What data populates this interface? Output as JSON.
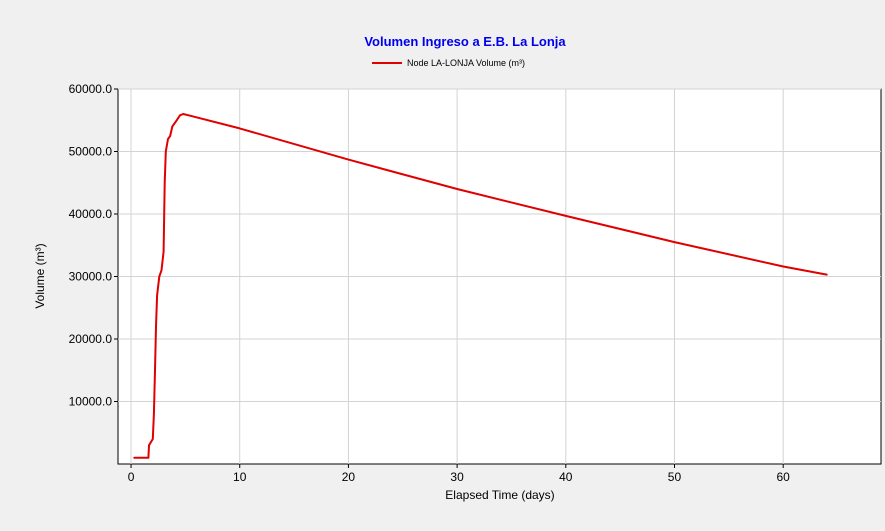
{
  "chart_data": {
    "type": "line",
    "title": "Volumen Ingreso a E.B. La Lonja",
    "xlabel": "Elapsed Time (days)",
    "ylabel": "Volume (m³)",
    "xlim": [
      -1.2,
      69
    ],
    "ylim": [
      0,
      60000
    ],
    "x_ticks": [
      0,
      10,
      20,
      30,
      40,
      50,
      60
    ],
    "y_ticks": [
      10000,
      20000,
      30000,
      40000,
      50000,
      60000
    ],
    "x_tick_labels": [
      "0",
      "10",
      "20",
      "30",
      "40",
      "50",
      "60"
    ],
    "y_tick_labels": [
      "10000.0",
      "20000.0",
      "30000.0",
      "40000.0",
      "50000.0",
      "60000.0"
    ],
    "grid": true,
    "legend_position": "top-center",
    "colors": {
      "series": "#e00000",
      "title": "#0000ee",
      "grid": "#d3d3d3",
      "background": "#f0f0f0",
      "plot_background": "#ffffff"
    },
    "series": [
      {
        "name": "Node LA-LONJA Volume (m³)",
        "x": [
          0.3,
          1.6,
          1.65,
          2.0,
          2.1,
          2.2,
          2.3,
          2.4,
          2.6,
          2.8,
          3.0,
          3.1,
          3.2,
          3.4,
          3.6,
          3.8,
          4.2,
          4.5,
          4.8,
          5.3,
          10,
          20,
          30,
          40,
          50,
          60,
          64
        ],
        "y": [
          1000,
          1000,
          3000,
          4000,
          8000,
          15000,
          22000,
          27000,
          30000,
          31000,
          34000,
          45000,
          50000,
          52000,
          52500,
          54000,
          55000,
          55800,
          56000,
          55800,
          53700,
          48700,
          44000,
          39700,
          35500,
          31600,
          30300
        ]
      }
    ]
  }
}
